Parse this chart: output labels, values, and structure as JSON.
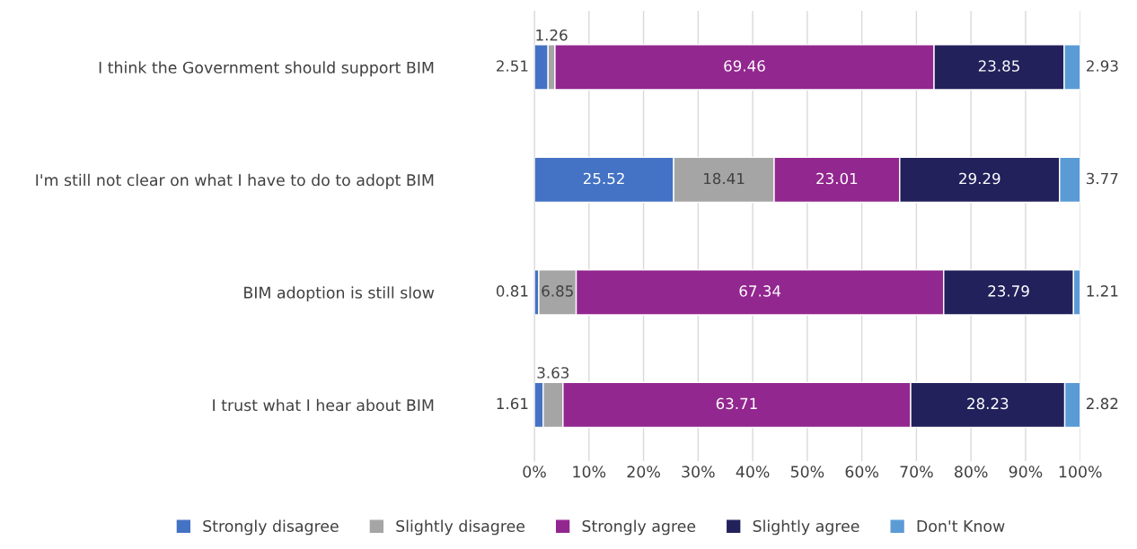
{
  "chart_data": {
    "type": "bar",
    "orientation": "horizontal",
    "stacked": true,
    "categories": [
      "I think the Government should support BIM",
      "I'm still not clear on what I have to do to adopt BIM",
      "BIM adoption is still slow",
      "I trust what I hear about BIM"
    ],
    "series": [
      {
        "name": "Strongly disagree",
        "color": "#4472c4",
        "values": [
          2.51,
          25.52,
          0.81,
          1.61
        ]
      },
      {
        "name": "Slightly disagree",
        "color": "#a5a5a5",
        "values": [
          1.26,
          18.41,
          6.85,
          3.63
        ]
      },
      {
        "name": "Strongly agree",
        "color": "#92278f",
        "values": [
          69.46,
          23.01,
          67.34,
          63.71
        ]
      },
      {
        "name": "Slightly agree",
        "color": "#22215b",
        "values": [
          23.85,
          29.29,
          23.79,
          28.23
        ]
      },
      {
        "name": "Don't Know",
        "color": "#5b9bd5",
        "values": [
          2.93,
          3.77,
          1.21,
          2.82
        ]
      }
    ],
    "xlim": [
      0,
      100
    ],
    "xticks": [
      {
        "value": 0,
        "label": "0%"
      },
      {
        "value": 10,
        "label": "10%"
      },
      {
        "value": 20,
        "label": "20%"
      },
      {
        "value": 30,
        "label": "30%"
      },
      {
        "value": 40,
        "label": "40%"
      },
      {
        "value": 50,
        "label": "50%"
      },
      {
        "value": 60,
        "label": "60%"
      },
      {
        "value": 70,
        "label": "70%"
      },
      {
        "value": 80,
        "label": "80%"
      },
      {
        "value": 90,
        "label": "90%"
      },
      {
        "value": 100,
        "label": "100%"
      }
    ],
    "grid": "x",
    "legend": "bottom",
    "data_labels": true
  }
}
